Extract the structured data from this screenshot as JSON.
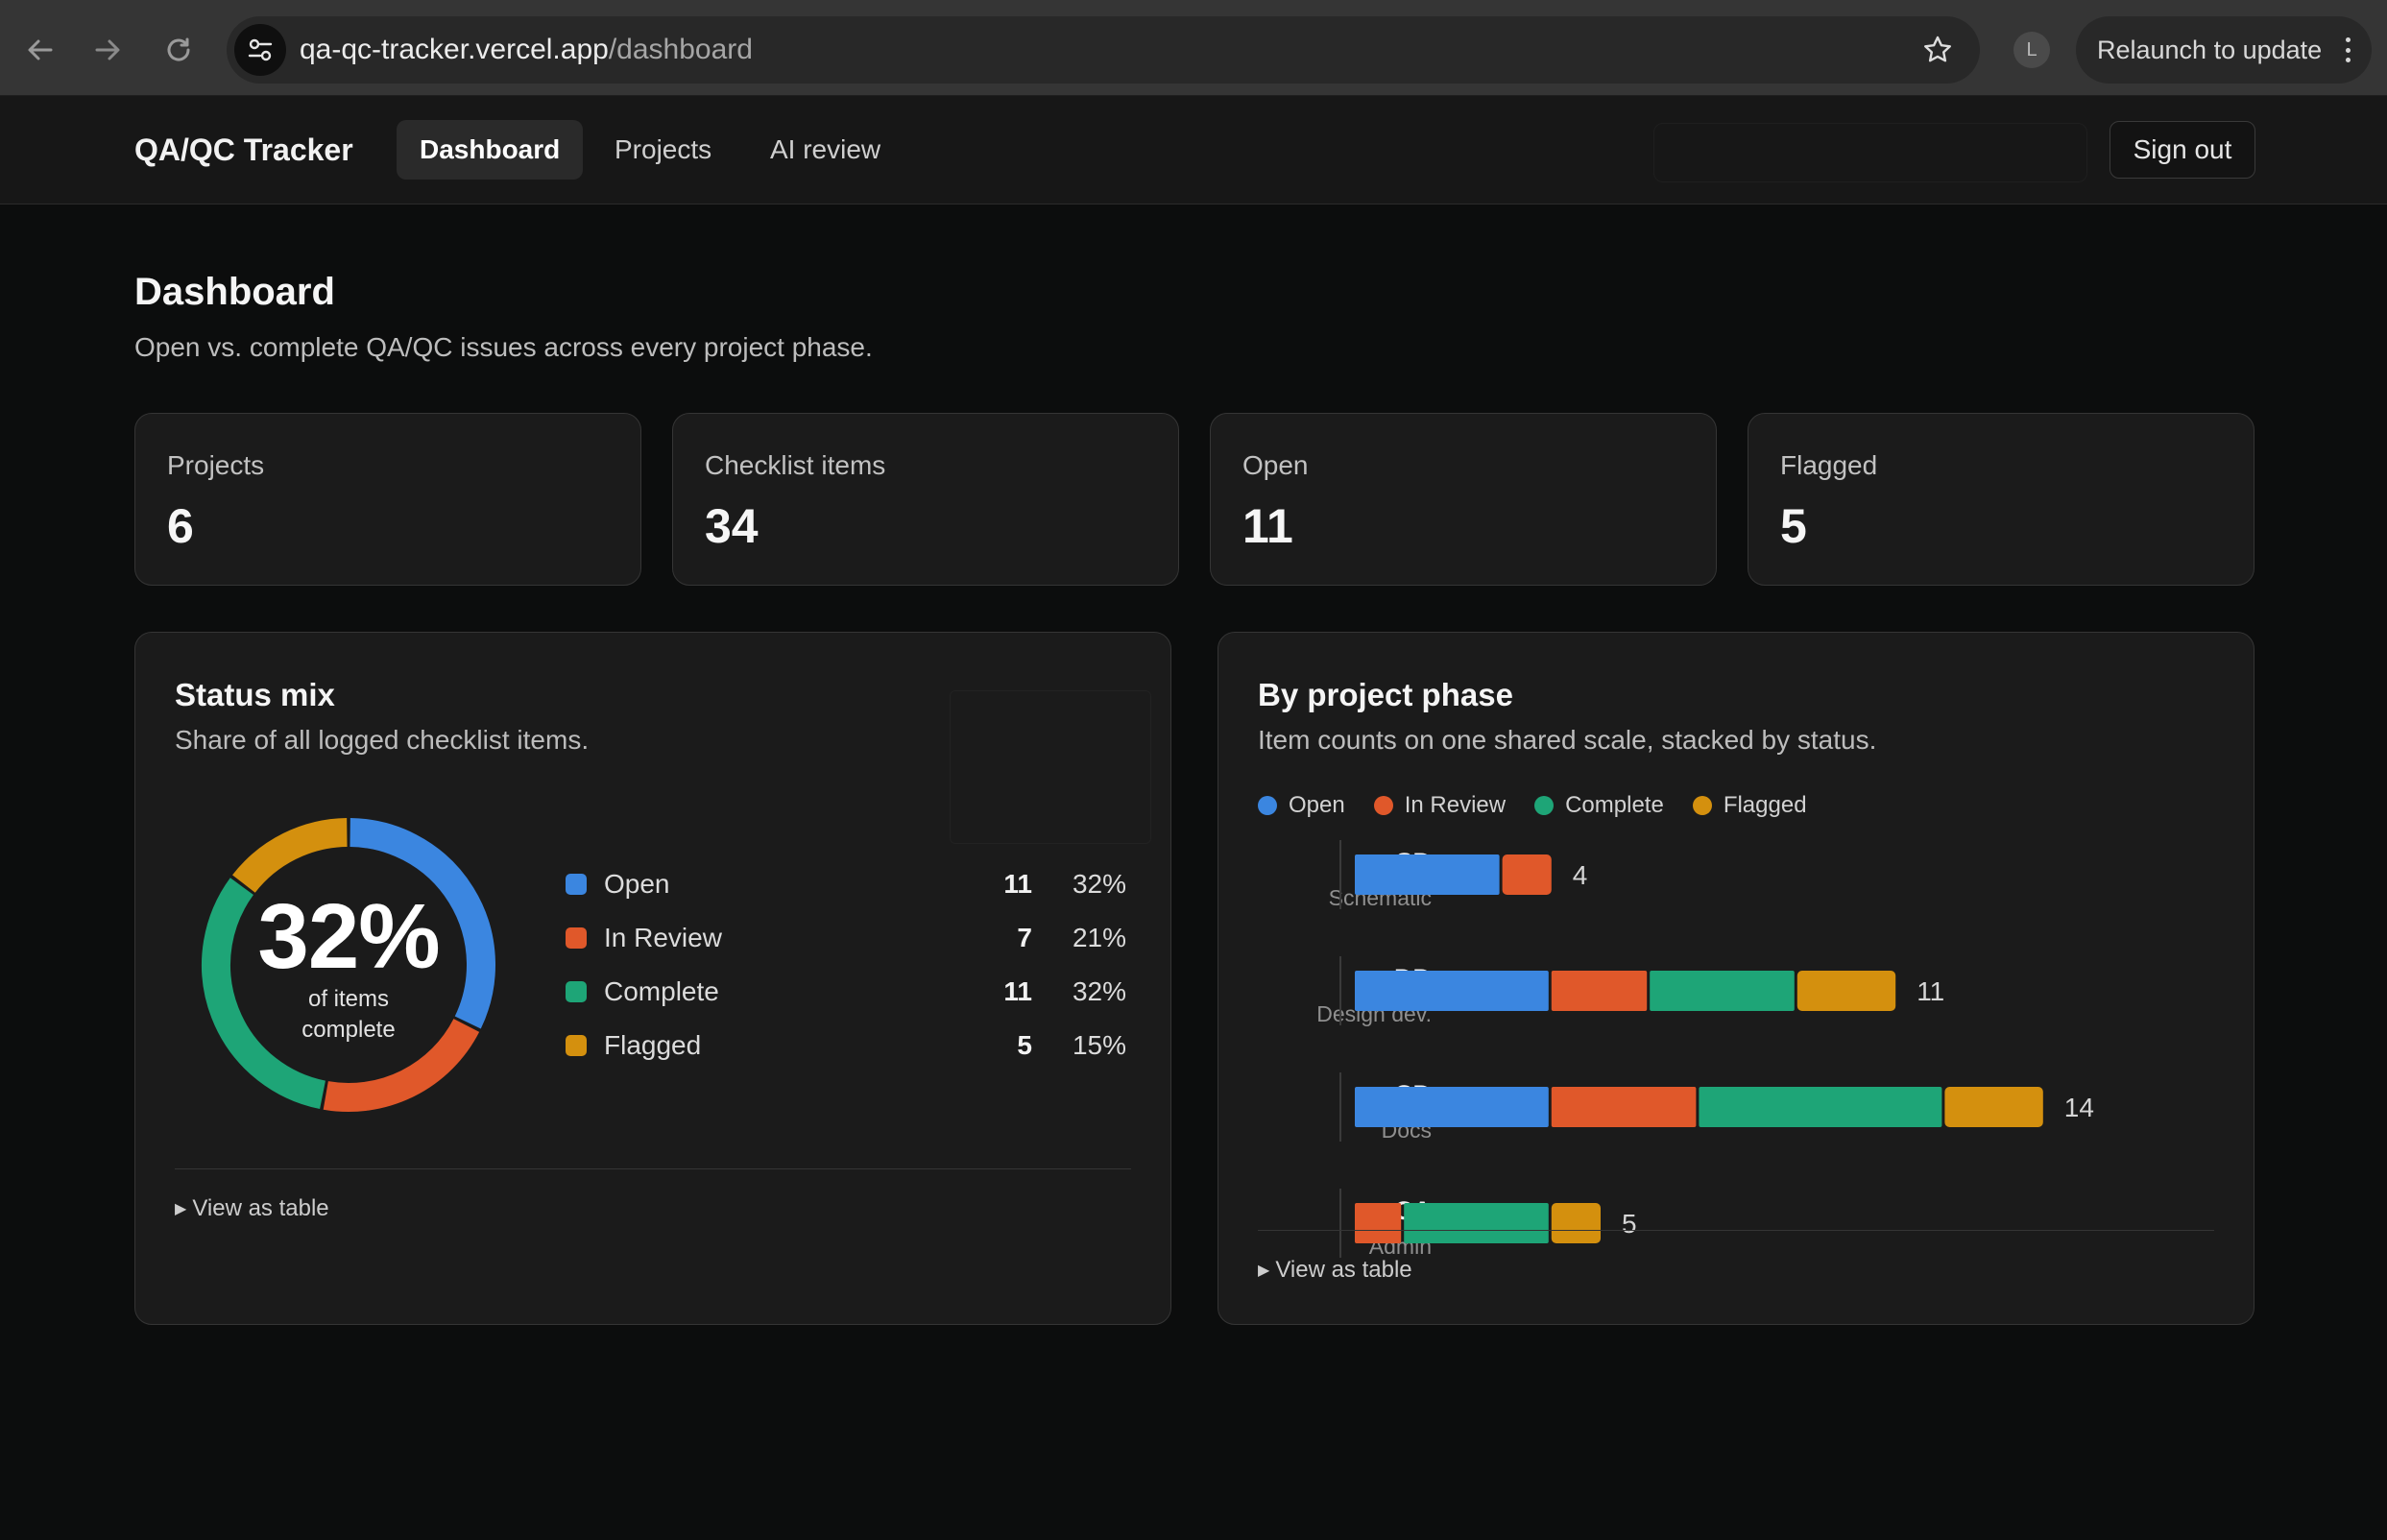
{
  "browser": {
    "url_host": "qa-qc-tracker.vercel.app",
    "url_path": "/dashboard",
    "profile_initial": "L",
    "relaunch_label": "Relaunch to update"
  },
  "header": {
    "brand": "QA/QC Tracker",
    "tabs": [
      {
        "label": "Dashboard",
        "active": true
      },
      {
        "label": "Projects",
        "active": false
      },
      {
        "label": "AI review",
        "active": false
      }
    ],
    "signout_label": "Sign out"
  },
  "page": {
    "title": "Dashboard",
    "subtitle": "Open vs. complete QA/QC issues across every project phase."
  },
  "stats": [
    {
      "label": "Projects",
      "value": "6"
    },
    {
      "label": "Checklist items",
      "value": "34"
    },
    {
      "label": "Open",
      "value": "11"
    },
    {
      "label": "Flagged",
      "value": "5"
    }
  ],
  "colors": {
    "open": "#3b86e0",
    "in_review": "#e0582a",
    "complete": "#1ea577",
    "flagged": "#d4900e"
  },
  "status_mix": {
    "title": "Status mix",
    "subtitle": "Share of all logged checklist items.",
    "center_value": "32%",
    "center_caption_1": "of items",
    "center_caption_2": "complete",
    "items": [
      {
        "label": "Open",
        "count": "11",
        "pct": "32%"
      },
      {
        "label": "In Review",
        "count": "7",
        "pct": "21%"
      },
      {
        "label": "Complete",
        "count": "11",
        "pct": "32%"
      },
      {
        "label": "Flagged",
        "count": "5",
        "pct": "15%"
      }
    ],
    "view_table": "View as table"
  },
  "phase": {
    "title": "By project phase",
    "subtitle": "Item counts on one shared scale, stacked by status.",
    "view_table": "View as table"
  },
  "chart_data": [
    {
      "type": "pie",
      "title": "Status mix",
      "categories": [
        "Open",
        "In Review",
        "Complete",
        "Flagged"
      ],
      "values": [
        11,
        7,
        11,
        5
      ],
      "percentages": [
        32,
        21,
        32,
        15
      ],
      "donut": true,
      "center_label": "32%"
    },
    {
      "type": "bar",
      "orientation": "horizontal",
      "stacked": true,
      "title": "By project phase",
      "categories": [
        "SD",
        "DD",
        "CD",
        "CA"
      ],
      "category_sublabels": [
        "Schematic",
        "Design dev.",
        "Docs",
        "Admin"
      ],
      "legend": "top-left",
      "series": [
        {
          "name": "Open",
          "values": [
            3,
            4,
            4,
            0
          ]
        },
        {
          "name": "In Review",
          "values": [
            1,
            2,
            3,
            1
          ]
        },
        {
          "name": "Complete",
          "values": [
            0,
            3,
            5,
            3
          ]
        },
        {
          "name": "Flagged",
          "values": [
            0,
            2,
            2,
            1
          ]
        }
      ],
      "totals": [
        4,
        11,
        14,
        5
      ]
    }
  ]
}
